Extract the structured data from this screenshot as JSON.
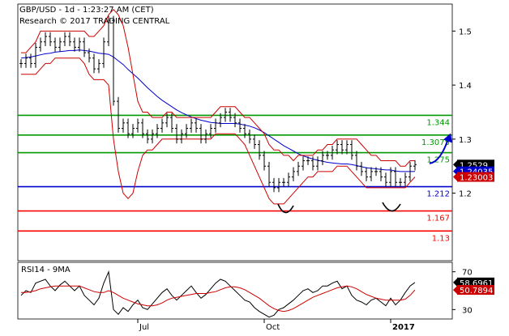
{
  "header": {
    "line1": "GBP/USD - 1d - 1:23:27 AM (CET)",
    "line2": "Research © 2017 TRADING CENTRAL"
  },
  "colors": {
    "price": "#000000",
    "bollinger": "#cc0000",
    "moving_average": "#0000cc",
    "support": "#0000cc",
    "resistance": "#009900",
    "target_below": "#ff0000",
    "arrow": "#0000cc",
    "rsi": "#000000",
    "rsi_ma": "#cc0000"
  },
  "chart_data": [
    {
      "type": "line",
      "panel": "price",
      "title": "",
      "ylim": [
        1.075,
        1.55
      ],
      "y_ticks": [
        1.5,
        1.4,
        1.3,
        1.2
      ],
      "y_tick_labels": [
        "1.5",
        "1.4",
        "1.3",
        "1.2"
      ],
      "x_labels": [
        "Jul",
        "Oct",
        "2017"
      ],
      "x_label_index": [
        24,
        50,
        76
      ],
      "grid": false,
      "legend": "none",
      "levels": [
        {
          "value": 1.344,
          "label": "1.344",
          "kind": "resistance"
        },
        {
          "value": 1.3075,
          "label": "1.3075",
          "kind": "resistance"
        },
        {
          "value": 1.275,
          "label": "1.275",
          "kind": "resistance"
        },
        {
          "value": 1.212,
          "label": "1.212",
          "kind": "support"
        },
        {
          "value": 1.167,
          "label": "1.167",
          "kind": "target_below"
        },
        {
          "value": 1.13,
          "label": "1.13",
          "kind": "target_below"
        }
      ],
      "last_values": [
        {
          "label": "1.2529",
          "value": 1.2529,
          "color": "#000000"
        },
        {
          "label": "1.24035",
          "value": 1.24035,
          "color": "#0000cc"
        },
        {
          "label": "1.23003",
          "value": 1.23003,
          "color": "#cc0000"
        }
      ],
      "arrow": {
        "from": [
          84,
          1.255
        ],
        "to": [
          88,
          1.305
        ]
      },
      "series": [
        {
          "role": "close",
          "values": [
            1.44,
            1.45,
            1.44,
            1.47,
            1.48,
            1.49,
            1.48,
            1.47,
            1.48,
            1.49,
            1.48,
            1.47,
            1.48,
            1.46,
            1.45,
            1.43,
            1.44,
            1.48,
            1.52,
            1.37,
            1.32,
            1.33,
            1.31,
            1.32,
            1.33,
            1.31,
            1.3,
            1.31,
            1.32,
            1.33,
            1.34,
            1.32,
            1.3,
            1.31,
            1.32,
            1.33,
            1.32,
            1.3,
            1.31,
            1.32,
            1.33,
            1.34,
            1.35,
            1.34,
            1.33,
            1.32,
            1.31,
            1.3,
            1.29,
            1.27,
            1.25,
            1.22,
            1.21,
            1.22,
            1.22,
            1.23,
            1.24,
            1.25,
            1.26,
            1.26,
            1.25,
            1.26,
            1.27,
            1.27,
            1.28,
            1.29,
            1.28,
            1.29,
            1.27,
            1.25,
            1.24,
            1.23,
            1.24,
            1.24,
            1.23,
            1.22,
            1.24,
            1.22,
            1.22,
            1.23,
            1.25,
            1.2529
          ]
        },
        {
          "role": "moving_average",
          "values": [
            1.45,
            1.451,
            1.452,
            1.454,
            1.456,
            1.458,
            1.459,
            1.461,
            1.462,
            1.463,
            1.464,
            1.464,
            1.465,
            1.464,
            1.463,
            1.461,
            1.459,
            1.458,
            1.457,
            1.452,
            1.445,
            1.438,
            1.429,
            1.421,
            1.413,
            1.404,
            1.395,
            1.387,
            1.379,
            1.372,
            1.366,
            1.36,
            1.354,
            1.349,
            1.345,
            1.341,
            1.338,
            1.335,
            1.333,
            1.331,
            1.33,
            1.329,
            1.329,
            1.329,
            1.329,
            1.328,
            1.326,
            1.324,
            1.321,
            1.317,
            1.312,
            1.306,
            1.3,
            1.294,
            1.288,
            1.283,
            1.278,
            1.273,
            1.269,
            1.266,
            1.263,
            1.261,
            1.259,
            1.257,
            1.256,
            1.255,
            1.254,
            1.254,
            1.253,
            1.251,
            1.249,
            1.247,
            1.246,
            1.245,
            1.244,
            1.243,
            1.243,
            1.241,
            1.24,
            1.24,
            1.24,
            1.24035
          ]
        },
        {
          "role": "bollinger_upper",
          "values": [
            1.46,
            1.46,
            1.47,
            1.48,
            1.5,
            1.5,
            1.5,
            1.5,
            1.5,
            1.5,
            1.5,
            1.5,
            1.5,
            1.5,
            1.49,
            1.49,
            1.5,
            1.51,
            1.53,
            1.54,
            1.53,
            1.51,
            1.47,
            1.42,
            1.37,
            1.35,
            1.35,
            1.34,
            1.34,
            1.34,
            1.35,
            1.35,
            1.34,
            1.34,
            1.34,
            1.34,
            1.34,
            1.34,
            1.34,
            1.34,
            1.35,
            1.36,
            1.36,
            1.36,
            1.36,
            1.35,
            1.34,
            1.34,
            1.33,
            1.32,
            1.31,
            1.29,
            1.28,
            1.28,
            1.27,
            1.27,
            1.26,
            1.27,
            1.27,
            1.27,
            1.27,
            1.28,
            1.28,
            1.29,
            1.29,
            1.3,
            1.3,
            1.3,
            1.3,
            1.3,
            1.29,
            1.28,
            1.27,
            1.27,
            1.26,
            1.26,
            1.26,
            1.26,
            1.25,
            1.25,
            1.26,
            1.26
          ]
        },
        {
          "role": "bollinger_lower",
          "values": [
            1.42,
            1.42,
            1.42,
            1.42,
            1.43,
            1.44,
            1.44,
            1.45,
            1.45,
            1.45,
            1.45,
            1.45,
            1.45,
            1.44,
            1.42,
            1.41,
            1.41,
            1.41,
            1.4,
            1.3,
            1.24,
            1.2,
            1.19,
            1.2,
            1.24,
            1.27,
            1.28,
            1.28,
            1.29,
            1.3,
            1.3,
            1.3,
            1.3,
            1.3,
            1.3,
            1.3,
            1.3,
            1.3,
            1.3,
            1.3,
            1.31,
            1.31,
            1.31,
            1.31,
            1.31,
            1.3,
            1.29,
            1.27,
            1.25,
            1.23,
            1.21,
            1.19,
            1.18,
            1.18,
            1.18,
            1.19,
            1.2,
            1.21,
            1.22,
            1.23,
            1.23,
            1.24,
            1.24,
            1.24,
            1.24,
            1.25,
            1.25,
            1.25,
            1.24,
            1.23,
            1.22,
            1.21,
            1.21,
            1.21,
            1.21,
            1.21,
            1.21,
            1.21,
            1.21,
            1.21,
            1.22,
            1.23003
          ]
        }
      ]
    },
    {
      "type": "line",
      "panel": "rsi",
      "title": "RSI14 - 9MA",
      "ylim": [
        20,
        80
      ],
      "y_ticks": [
        70,
        30
      ],
      "y_tick_labels": [
        "70",
        "30"
      ],
      "last_values": [
        {
          "label": "58.6961",
          "value": 58.6961,
          "color": "#000000"
        },
        {
          "label": "50.7894",
          "value": 50.7894,
          "color": "#cc0000"
        }
      ],
      "series": [
        {
          "role": "rsi",
          "values": [
            45,
            50,
            48,
            58,
            60,
            62,
            55,
            50,
            56,
            60,
            55,
            50,
            55,
            45,
            40,
            35,
            42,
            58,
            70,
            30,
            25,
            32,
            28,
            35,
            40,
            32,
            30,
            36,
            42,
            48,
            52,
            45,
            40,
            45,
            50,
            55,
            48,
            42,
            46,
            52,
            58,
            62,
            60,
            55,
            50,
            45,
            40,
            38,
            32,
            28,
            25,
            22,
            24,
            30,
            32,
            36,
            40,
            45,
            50,
            52,
            48,
            50,
            55,
            55,
            58,
            60,
            52,
            55,
            45,
            40,
            38,
            35,
            40,
            42,
            38,
            34,
            42,
            35,
            40,
            48,
            55,
            58.6961
          ]
        },
        {
          "role": "rsi_ma",
          "values": [
            48,
            48,
            49,
            50,
            52,
            53,
            54,
            55,
            55,
            55,
            55,
            55,
            55,
            53,
            51,
            49,
            48,
            48,
            50,
            48,
            45,
            42,
            40,
            38,
            36,
            35,
            34,
            34,
            35,
            37,
            40,
            42,
            43,
            44,
            45,
            46,
            47,
            47,
            47,
            48,
            49,
            51,
            53,
            54,
            54,
            53,
            51,
            48,
            45,
            42,
            38,
            34,
            31,
            29,
            28,
            29,
            31,
            34,
            37,
            40,
            43,
            45,
            47,
            49,
            51,
            53,
            54,
            55,
            54,
            52,
            49,
            46,
            44,
            42,
            41,
            40,
            40,
            40,
            40,
            41,
            45,
            50.7894
          ]
        }
      ]
    }
  ]
}
